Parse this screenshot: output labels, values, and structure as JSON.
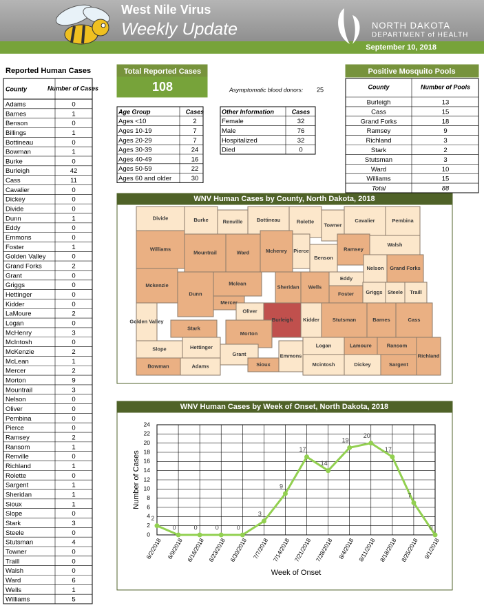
{
  "header": {
    "title": "West Nile Virus",
    "subtitle": "Weekly Update",
    "org_line1": "NORTH DAKOTA",
    "org_line2": "DEPARTMENT of HEALTH",
    "date": "September 10, 2018"
  },
  "county_table": {
    "title": "Reported Human Cases",
    "columns": [
      "County",
      "Number of Cases"
    ],
    "rows": [
      [
        "Adams",
        0
      ],
      [
        "Barnes",
        1
      ],
      [
        "Benson",
        0
      ],
      [
        "Billings",
        1
      ],
      [
        "Bottineau",
        0
      ],
      [
        "Bowman",
        1
      ],
      [
        "Burke",
        0
      ],
      [
        "Burleigh",
        42
      ],
      [
        "Cass",
        11
      ],
      [
        "Cavalier",
        0
      ],
      [
        "Dickey",
        0
      ],
      [
        "Divide",
        0
      ],
      [
        "Dunn",
        1
      ],
      [
        "Eddy",
        0
      ],
      [
        "Emmons",
        0
      ],
      [
        "Foster",
        1
      ],
      [
        "Golden Valley",
        0
      ],
      [
        "Grand Forks",
        2
      ],
      [
        "Grant",
        0
      ],
      [
        "Griggs",
        0
      ],
      [
        "Hettinger",
        0
      ],
      [
        "Kidder",
        0
      ],
      [
        "LaMoure",
        2
      ],
      [
        "Logan",
        0
      ],
      [
        "McHenry",
        3
      ],
      [
        "McIntosh",
        0
      ],
      [
        "McKenzie",
        2
      ],
      [
        "McLean",
        1
      ],
      [
        "Mercer",
        2
      ],
      [
        "Morton",
        9
      ],
      [
        "Mountrail",
        3
      ],
      [
        "Nelson",
        0
      ],
      [
        "Oliver",
        0
      ],
      [
        "Pembina",
        0
      ],
      [
        "Pierce",
        0
      ],
      [
        "Ramsey",
        2
      ],
      [
        "Ransom",
        1
      ],
      [
        "Renville",
        0
      ],
      [
        "Richland",
        1
      ],
      [
        "Rolette",
        0
      ],
      [
        "Sargent",
        1
      ],
      [
        "Sheridan",
        1
      ],
      [
        "Sioux",
        1
      ],
      [
        "Slope",
        0
      ],
      [
        "Stark",
        3
      ],
      [
        "Steele",
        0
      ],
      [
        "Stutsman",
        4
      ],
      [
        "Towner",
        0
      ],
      [
        "Traill",
        0
      ],
      [
        "Walsh",
        0
      ],
      [
        "Ward",
        6
      ],
      [
        "Wells",
        1
      ],
      [
        "Williams",
        5
      ]
    ]
  },
  "total": {
    "label": "Total Reported Cases",
    "value": 108
  },
  "asymptomatic": {
    "label": "Asymptomatic blood donors:",
    "value": 25
  },
  "age_table": {
    "columns": [
      "Age Group",
      "Cases"
    ],
    "rows": [
      [
        "Ages <10",
        2
      ],
      [
        "Ages 10-19",
        7
      ],
      [
        "Ages 20-29",
        7
      ],
      [
        "Ages 30-39",
        24
      ],
      [
        "Ages 40-49",
        16
      ],
      [
        "Ages 50-59",
        22
      ],
      [
        "Ages 60 and older",
        30
      ]
    ]
  },
  "other_table": {
    "columns": [
      "Other Information",
      "Cases"
    ],
    "rows": [
      [
        "Female",
        32
      ],
      [
        "Male",
        76
      ],
      [
        "Hospitalized",
        32
      ],
      [
        "Died",
        0
      ]
    ]
  },
  "mosquito_table": {
    "title": "Positive Mosquito Pools",
    "columns": [
      "County",
      "Number of Pools"
    ],
    "rows": [
      [
        "Burleigh",
        13
      ],
      [
        "Cass",
        15
      ],
      [
        "Grand Forks",
        18
      ],
      [
        "Ramsey",
        9
      ],
      [
        "Richland",
        3
      ],
      [
        "Stark",
        2
      ],
      [
        "Stutsman",
        3
      ],
      [
        "Ward",
        10
      ],
      [
        "Williams",
        15
      ]
    ],
    "total": [
      "Total",
      88
    ]
  },
  "map": {
    "title": "WNV Human Cases by County, North Dakota, 2018",
    "counties": [
      {
        "label": "Divide",
        "color": "#fce7cb"
      },
      {
        "label": "Burke",
        "color": "#fce7cb"
      },
      {
        "label": "Renville",
        "color": "#fce7cb"
      },
      {
        "label": "Bottineau",
        "color": "#fce7cb"
      },
      {
        "label": "Rolette",
        "color": "#fce7cb"
      },
      {
        "label": "Towner",
        "color": "#fce7cb"
      },
      {
        "label": "Cavalier",
        "color": "#fce7cb"
      },
      {
        "label": "Pembina",
        "color": "#fce7cb"
      },
      {
        "label": "Williams",
        "color": "#eab083"
      },
      {
        "label": "Mountrail",
        "color": "#eab083"
      },
      {
        "label": "Ward",
        "color": "#eab083"
      },
      {
        "label": "Mchenry",
        "color": "#eab083"
      },
      {
        "label": "Pierce",
        "color": "#fce7cb"
      },
      {
        "label": "Benson",
        "color": "#fce7cb"
      },
      {
        "label": "Ramsey",
        "color": "#eab083"
      },
      {
        "label": "Walsh",
        "color": "#fce7cb"
      },
      {
        "label": "Mckenzie",
        "color": "#eab083"
      },
      {
        "label": "Dunn",
        "color": "#eab083"
      },
      {
        "label": "Mclean",
        "color": "#eab083"
      },
      {
        "label": "Mercer",
        "color": "#eab083"
      },
      {
        "label": "Sheridan",
        "color": "#eab083"
      },
      {
        "label": "Wells",
        "color": "#eab083"
      },
      {
        "label": "Eddy",
        "color": "#fce7cb"
      },
      {
        "label": "Nelson",
        "color": "#fce7cb"
      },
      {
        "label": "Grand Forks",
        "color": "#eab083"
      },
      {
        "label": "Foster",
        "color": "#eab083"
      },
      {
        "label": "Griggs",
        "color": "#fce7cb"
      },
      {
        "label": "Steele",
        "color": "#fce7cb"
      },
      {
        "label": "Traill",
        "color": "#fce7cb"
      },
      {
        "label": "Golden Valley",
        "color": "#fce7cb"
      },
      {
        "label": "Oliver",
        "color": "#fce7cb"
      },
      {
        "label": "Burleigh",
        "color": "#c0504d"
      },
      {
        "label": "Kidder",
        "color": "#fce7cb"
      },
      {
        "label": "Stutsman",
        "color": "#eab083"
      },
      {
        "label": "Barnes",
        "color": "#eab083"
      },
      {
        "label": "Cass",
        "color": "#eab083"
      },
      {
        "label": "Stark",
        "color": "#eab083"
      },
      {
        "label": "Morton",
        "color": "#eab083"
      },
      {
        "label": "Slope",
        "color": "#fce7cb"
      },
      {
        "label": "Hettinger",
        "color": "#fce7cb"
      },
      {
        "label": "Grant",
        "color": "#fce7cb"
      },
      {
        "label": "Sioux",
        "color": "#eab083"
      },
      {
        "label": "Emmons",
        "color": "#fce7cb"
      },
      {
        "label": "Logan",
        "color": "#fce7cb"
      },
      {
        "label": "Lamoure",
        "color": "#eab083"
      },
      {
        "label": "Ransom",
        "color": "#eab083"
      },
      {
        "label": "Richland",
        "color": "#eab083"
      },
      {
        "label": "Bowman",
        "color": "#eab083"
      },
      {
        "label": "Adams",
        "color": "#fce7cb"
      },
      {
        "label": "Mcintosh",
        "color": "#fce7cb"
      },
      {
        "label": "Dickey",
        "color": "#fce7cb"
      },
      {
        "label": "Sargent",
        "color": "#eab083"
      }
    ]
  },
  "chart_data": {
    "type": "line",
    "title": "WNV Human Cases by Week of Onset, North Dakota, 2018",
    "categories": [
      "6/2/2018",
      "6/9/2018",
      "6/16/2018",
      "6/23/2018",
      "6/30/2018",
      "7/7/2018",
      "7/14/2018",
      "7/21/2018",
      "7/28/2018",
      "8/4/2018",
      "8/11/2018",
      "8/18/2018",
      "8/25/2018",
      "9/1/2018"
    ],
    "values": [
      2,
      0,
      0,
      0,
      0,
      3,
      9,
      17,
      14,
      19,
      20,
      17,
      7,
      0
    ],
    "color": "#92d050",
    "xlabel": "Week of Onset",
    "ylabel": "Number of Cases",
    "ylim": [
      0,
      24
    ],
    "yticks": [
      0,
      2,
      4,
      6,
      8,
      10,
      12,
      14,
      16,
      18,
      20,
      22,
      24
    ],
    "grid": true
  }
}
